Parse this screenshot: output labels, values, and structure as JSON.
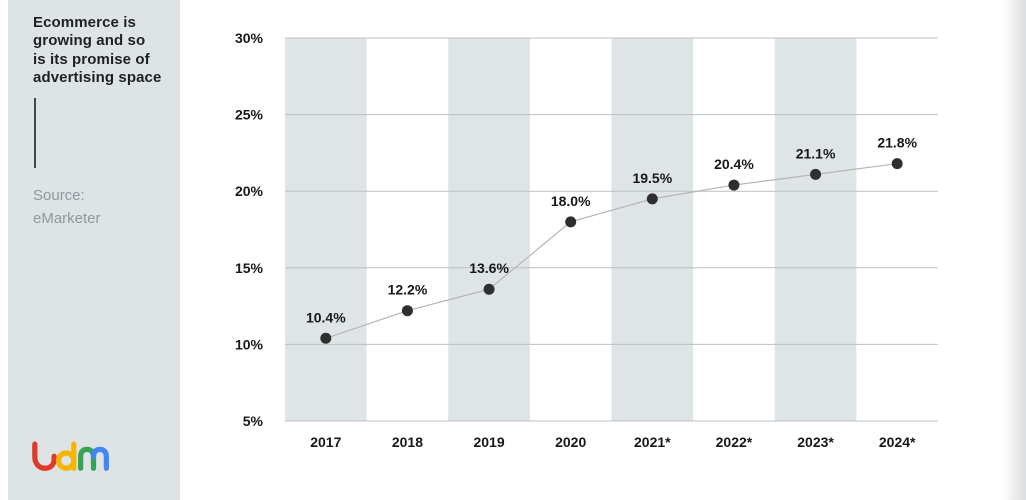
{
  "sidebar": {
    "title": "Ecommerce is\ngrowing and so\nis its promise of\nadvertising space",
    "source": "Source:\neMarketer",
    "logo": {
      "name": "Ldm",
      "colors": {
        "l": "#df3a2a",
        "d": "#f4b605",
        "m_left": "#33a553",
        "m_right": "#4285f4"
      }
    }
  },
  "chart_data": {
    "type": "line",
    "title": "Ecommerce is growing and so is its promise of advertising space",
    "source": "Source: eMarketer",
    "x_labels": [
      "2017",
      "2018",
      "2019",
      "2020",
      "2021*",
      "2022*",
      "2023*",
      "2024*"
    ],
    "values": [
      10.4,
      12.2,
      13.6,
      18.0,
      19.5,
      20.4,
      21.1,
      21.8
    ],
    "point_labels": [
      "10.4%",
      "12.2%",
      "13.6%",
      "18.0%",
      "19.5%",
      "20.4%",
      "21.1%",
      "21.8%"
    ],
    "y_tick_labels": [
      "30%",
      "25%",
      "20%",
      "15%",
      "10%",
      "5%"
    ],
    "y_tick_values": [
      30,
      25,
      20,
      15,
      10,
      5
    ],
    "ylim": [
      5,
      30
    ],
    "grid": "horizontal",
    "legend": "none",
    "banded_columns": [
      0,
      2,
      4,
      6
    ],
    "colors": {
      "band": "#dfe4e7",
      "grid": "#bcc0c3",
      "line": "#b5b5b5",
      "dot": "#2f2f2f",
      "axis_text": "#17181a",
      "point_label_text": "#17181a"
    }
  }
}
